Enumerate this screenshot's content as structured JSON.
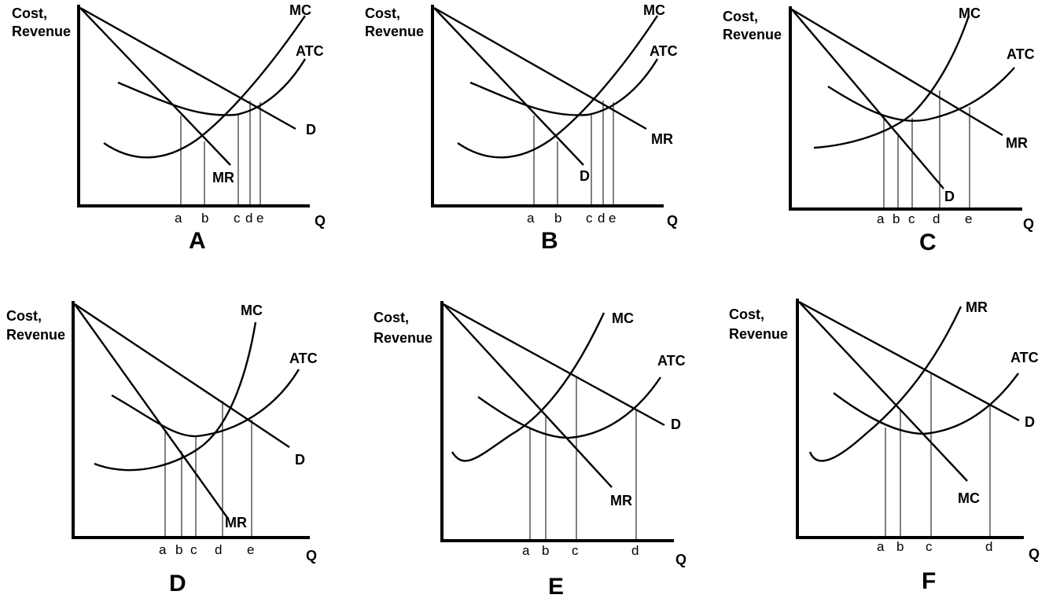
{
  "axes": {
    "y_label_line1": "Cost,",
    "y_label_line2": "Revenue",
    "x_label": "Q"
  },
  "panels": [
    {
      "id": "A",
      "title": "A",
      "curve_labels": [
        "MC",
        "ATC",
        "D",
        "MR"
      ],
      "quantity_labels": [
        "a",
        "b",
        "c",
        "d",
        "e"
      ]
    },
    {
      "id": "B",
      "title": "B",
      "curve_labels": [
        "MC",
        "ATC",
        "MR",
        "D"
      ],
      "quantity_labels": [
        "a",
        "b",
        "c",
        "d",
        "e"
      ]
    },
    {
      "id": "C",
      "title": "C",
      "curve_labels": [
        "MC",
        "ATC",
        "MR",
        "D"
      ],
      "quantity_labels": [
        "a",
        "b",
        "c",
        "d",
        "e"
      ]
    },
    {
      "id": "D",
      "title": "D",
      "curve_labels": [
        "MC",
        "ATC",
        "D",
        "MR"
      ],
      "quantity_labels": [
        "a",
        "b",
        "c",
        "d",
        "e"
      ]
    },
    {
      "id": "E",
      "title": "E",
      "curve_labels": [
        "MC",
        "ATC",
        "D",
        "MR"
      ],
      "quantity_labels": [
        "a",
        "b",
        "c",
        "d"
      ]
    },
    {
      "id": "F",
      "title": "F",
      "curve_labels": [
        "MR",
        "ATC",
        "D",
        "MC"
      ],
      "quantity_labels": [
        "a",
        "b",
        "c",
        "d"
      ]
    }
  ]
}
